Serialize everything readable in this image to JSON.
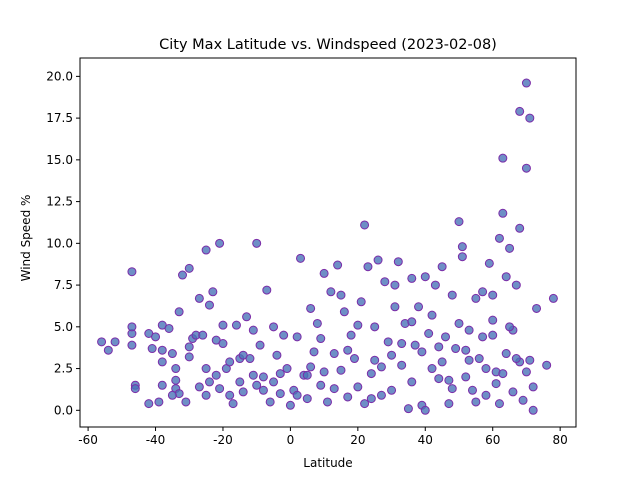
{
  "chart_data": {
    "type": "scatter",
    "title": "City Max Latitude vs. Windspeed (2023-02-08)",
    "x_label": "Latitude",
    "y_label": "Wind Speed %",
    "color": "#4a73b8",
    "edgecolor": "#7b2ca8",
    "xlim": [
      -62.4,
      84.7
    ],
    "ylim": [
      -1,
      21.1
    ],
    "xticks": [
      -60,
      -40,
      -20,
      0,
      20,
      40,
      60,
      80
    ],
    "yticks": [
      {
        "value": 0,
        "label": "0.0"
      },
      {
        "value": 2.5,
        "label": "2.5"
      },
      {
        "value": 5,
        "label": "5.0"
      },
      {
        "value": 7.5,
        "label": "7.5"
      },
      {
        "value": 10,
        "label": "10.0"
      },
      {
        "value": 12.5,
        "label": "12.5"
      },
      {
        "value": 15,
        "label": "15.0"
      },
      {
        "value": 17.5,
        "label": "17.5"
      },
      {
        "value": 20,
        "label": "20.0"
      }
    ],
    "x": [
      -47,
      -54,
      -56,
      -52,
      -47,
      -47,
      -47,
      -46,
      -46,
      -42,
      -40,
      -41,
      -42,
      -39,
      -38,
      -38,
      -38,
      -36,
      -35,
      -34,
      -34,
      -34,
      -33,
      -33,
      -32,
      -31,
      -30,
      -30,
      -29,
      -28,
      -27,
      -26,
      -25,
      -25,
      -24,
      -24,
      -23,
      -22,
      -21,
      -21,
      -20,
      -20,
      -19,
      -18,
      -17,
      -16,
      -15,
      -14,
      -13,
      -12,
      -11,
      -10,
      -10,
      -9,
      -8,
      -7,
      -6,
      -5,
      -4,
      -3,
      -2,
      -1,
      0,
      1,
      2,
      3,
      4,
      5,
      6,
      7,
      8,
      9,
      10,
      11,
      12,
      13,
      14,
      15,
      16,
      17,
      18,
      19,
      20,
      21,
      22,
      23,
      24,
      25,
      26,
      27,
      28,
      29,
      30,
      31,
      32,
      33,
      34,
      35,
      36,
      37,
      38,
      39,
      40,
      41,
      42,
      43,
      44,
      45,
      46,
      47,
      48,
      49,
      50,
      51,
      51,
      52,
      53,
      54,
      55,
      56,
      57,
      58,
      59,
      60,
      61,
      62,
      63,
      63,
      64,
      65,
      66,
      67,
      68,
      68,
      69,
      70,
      70,
      71,
      71,
      72,
      73,
      76,
      78,
      -35,
      -30,
      -22,
      -18,
      -14,
      -8,
      -3,
      2,
      6,
      9,
      13,
      17,
      20,
      24,
      27,
      30,
      33,
      36,
      39,
      42,
      45,
      48,
      50,
      52,
      55,
      58,
      60,
      62,
      64,
      66,
      68,
      70,
      72,
      31,
      44,
      36,
      22,
      53,
      57,
      60,
      65,
      10,
      -27,
      -11,
      -38,
      47,
      40,
      25,
      15,
      5,
      -5,
      -15,
      -25,
      63,
      67,
      61
    ],
    "values": [
      8.3,
      3.6,
      4.1,
      4.1,
      4.6,
      5,
      3.9,
      1.5,
      1.3,
      4.6,
      4.4,
      3.7,
      0.4,
      0.5,
      1.5,
      2.9,
      5.1,
      4.9,
      3.4,
      2.5,
      1.8,
      1.3,
      1,
      5.9,
      8.1,
      0.5,
      8.5,
      3.2,
      4.3,
      4.5,
      6.7,
      4.5,
      9.6,
      2.5,
      1.7,
      6.3,
      7.1,
      4.2,
      10,
      1.3,
      4,
      5.1,
      2.5,
      2.9,
      0.4,
      5.1,
      3.1,
      1.1,
      5.6,
      3.1,
      2.1,
      10,
      1.5,
      3.9,
      2,
      7.2,
      0.5,
      5,
      3.3,
      1,
      4.5,
      2.5,
      0.3,
      1.2,
      0.9,
      9.1,
      2.1,
      0.7,
      6.1,
      3.5,
      5.2,
      1.5,
      8.2,
      0.5,
      7.1,
      3.4,
      8.7,
      2.4,
      5.9,
      0.8,
      4.5,
      3.1,
      1.4,
      6.5,
      11.1,
      8.6,
      0.7,
      5,
      9,
      2.6,
      7.7,
      4.1,
      1.2,
      7.5,
      8.9,
      2.7,
      5.2,
      0.1,
      7.9,
      3.9,
      6.2,
      0.3,
      8,
      4.6,
      2.5,
      7.5,
      1.9,
      8.6,
      4.4,
      0.4,
      6.9,
      3.7,
      11.3,
      9.8,
      9.2,
      2,
      4.8,
      1.2,
      6.7,
      3.1,
      7.1,
      0.9,
      8.8,
      4.5,
      2.3,
      10.3,
      11.8,
      15.1,
      8,
      9.7,
      4.8,
      7.5,
      17.9,
      10.9,
      0.6,
      14.5,
      19.6,
      17.5,
      3,
      0,
      6.1,
      2.7,
      6.7,
      0.9,
      3.8,
      2.1,
      0.9,
      3.3,
      1.2,
      2.2,
      4.4,
      2.6,
      4.3,
      1.3,
      3.6,
      5.1,
      2.2,
      0.9,
      3.3,
      4,
      1.7,
      3.5,
      5.7,
      2.9,
      1.3,
      5.2,
      3.6,
      0.5,
      2.5,
      5.4,
      0.4,
      3.4,
      1.1,
      2.9,
      2.3,
      1.4,
      6.2,
      3.8,
      5.3,
      0.4,
      3,
      4.4,
      6.9,
      5,
      2.3,
      1.4,
      4.8,
      3.6,
      1.8,
      0,
      3,
      6.9,
      2.1,
      1.7,
      1.7,
      0.9,
      2.2,
      3.1,
      1.6
    ]
  }
}
